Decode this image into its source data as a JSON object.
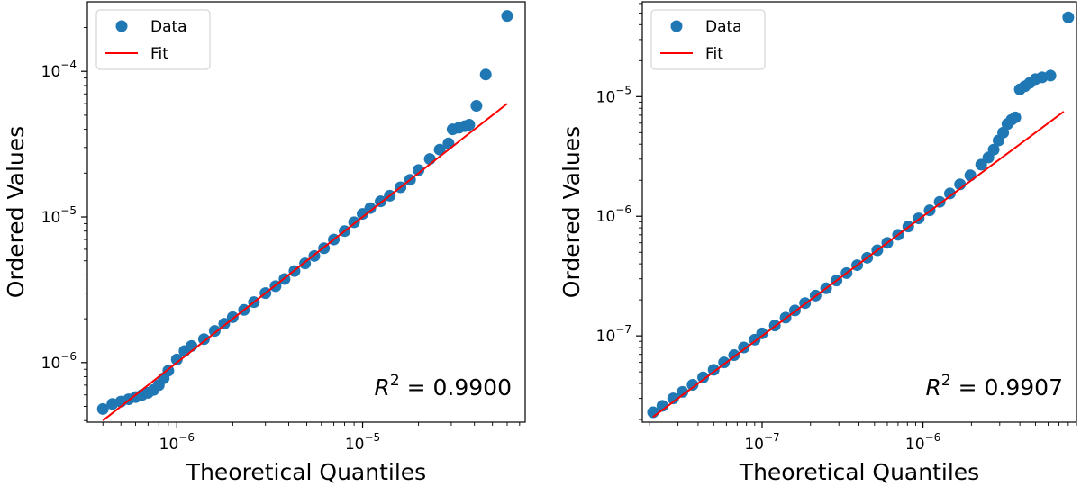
{
  "chart_data": [
    {
      "type": "scatter",
      "xscale": "log",
      "yscale": "log",
      "xlabel": "Theoretical Quantiles",
      "ylabel": "Ordered Values",
      "xlim": [
        3.3e-07,
        7.5e-05
      ],
      "ylim": [
        3.9e-07,
        0.0003
      ],
      "xticks": [
        {
          "value": 1e-06,
          "mant": "10",
          "exp": "−6"
        },
        {
          "value": 1e-05,
          "mant": "10",
          "exp": "−5"
        }
      ],
      "yticks": [
        {
          "value": 1e-06,
          "mant": "10",
          "exp": "−6"
        },
        {
          "value": 1e-05,
          "mant": "10",
          "exp": "−5"
        },
        {
          "value": 0.0001,
          "mant": "10",
          "exp": "−4"
        }
      ],
      "legend": {
        "position": "upper-left",
        "entries": [
          {
            "label": "Data",
            "marker": "circle",
            "color": "#1f77b4"
          },
          {
            "label": "Fit",
            "marker": "line",
            "color": "#ff0000"
          }
        ]
      },
      "annotation": {
        "prefix": "R",
        "sup": "2",
        "value": "= 0.9900",
        "position": "lower-right"
      },
      "fit": {
        "x": [
          4e-07,
          6e-05
        ],
        "y": [
          4e-07,
          6e-05
        ],
        "color": "#ff0000"
      },
      "series": [
        {
          "name": "Data",
          "color": "#1f77b4",
          "points": [
            [
              4e-07,
              4.8e-07
            ],
            [
              4.5e-07,
              5.2e-07
            ],
            [
              5e-07,
              5.4e-07
            ],
            [
              5.5e-07,
              5.6e-07
            ],
            [
              6e-07,
              5.8e-07
            ],
            [
              6.5e-07,
              6e-07
            ],
            [
              7e-07,
              6.2e-07
            ],
            [
              7.5e-07,
              6.5e-07
            ],
            [
              8e-07,
              7e-07
            ],
            [
              8.5e-07,
              7.8e-07
            ],
            [
              9e-07,
              8.8e-07
            ],
            [
              1e-06,
              1.05e-06
            ],
            [
              1.1e-06,
              1.2e-06
            ],
            [
              1.2e-06,
              1.3e-06
            ],
            [
              1.4e-06,
              1.45e-06
            ],
            [
              1.6e-06,
              1.65e-06
            ],
            [
              1.8e-06,
              1.85e-06
            ],
            [
              2e-06,
              2.05e-06
            ],
            [
              2.3e-06,
              2.3e-06
            ],
            [
              2.6e-06,
              2.6e-06
            ],
            [
              3e-06,
              3e-06
            ],
            [
              3.4e-06,
              3.35e-06
            ],
            [
              3.8e-06,
              3.75e-06
            ],
            [
              4.3e-06,
              4.25e-06
            ],
            [
              4.9e-06,
              4.8e-06
            ],
            [
              5.5e-06,
              5.4e-06
            ],
            [
              6.2e-06,
              6.1e-06
            ],
            [
              7e-06,
              7e-06
            ],
            [
              8e-06,
              8e-06
            ],
            [
              9e-06,
              9.2e-06
            ],
            [
              1e-05,
              1.05e-05
            ],
            [
              1.1e-05,
              1.15e-05
            ],
            [
              1.25e-05,
              1.28e-05
            ],
            [
              1.4e-05,
              1.4e-05
            ],
            [
              1.6e-05,
              1.6e-05
            ],
            [
              1.8e-05,
              1.8e-05
            ],
            [
              2e-05,
              2.1e-05
            ],
            [
              2.3e-05,
              2.5e-05
            ],
            [
              2.6e-05,
              2.9e-05
            ],
            [
              2.9e-05,
              3.2e-05
            ],
            [
              3.05e-05,
              4e-05
            ],
            [
              3.3e-05,
              4.1e-05
            ],
            [
              3.55e-05,
              4.2e-05
            ],
            [
              3.75e-05,
              4.3e-05
            ],
            [
              4.1e-05,
              5.8e-05
            ],
            [
              4.6e-05,
              9.5e-05
            ],
            [
              6e-05,
              0.00024
            ]
          ]
        }
      ]
    },
    {
      "type": "scatter",
      "xscale": "log",
      "yscale": "log",
      "xlabel": "Theoretical Quantiles",
      "ylabel": "Ordered Values",
      "xlim": [
        1.8e-08,
        9e-06
      ],
      "ylim": [
        1.9e-08,
        6.2e-05
      ],
      "xticks": [
        {
          "value": 1e-07,
          "mant": "10",
          "exp": "−7"
        },
        {
          "value": 1e-06,
          "mant": "10",
          "exp": "−6"
        }
      ],
      "yticks": [
        {
          "value": 1e-07,
          "mant": "10",
          "exp": "−7"
        },
        {
          "value": 1e-06,
          "mant": "10",
          "exp": "−6"
        },
        {
          "value": 1e-05,
          "mant": "10",
          "exp": "−5"
        }
      ],
      "legend": {
        "position": "upper-left",
        "entries": [
          {
            "label": "Data",
            "marker": "circle",
            "color": "#1f77b4"
          },
          {
            "label": "Fit",
            "marker": "line",
            "color": "#ff0000"
          }
        ]
      },
      "annotation": {
        "prefix": "R",
        "sup": "2",
        "value": "= 0.9907",
        "position": "lower-right"
      },
      "fit": {
        "x": [
          2.1e-08,
          7.5e-06
        ],
        "y": [
          2.1e-08,
          7.5e-06
        ],
        "color": "#ff0000"
      },
      "series": [
        {
          "name": "Data",
          "color": "#1f77b4",
          "points": [
            [
              2.1e-08,
              2.3e-08
            ],
            [
              2.4e-08,
              2.6e-08
            ],
            [
              2.8e-08,
              3e-08
            ],
            [
              3.2e-08,
              3.4e-08
            ],
            [
              3.7e-08,
              3.9e-08
            ],
            [
              4.3e-08,
              4.5e-08
            ],
            [
              5e-08,
              5.2e-08
            ],
            [
              5.8e-08,
              6e-08
            ],
            [
              6.7e-08,
              6.9e-08
            ],
            [
              7.7e-08,
              8e-08
            ],
            [
              9e-08,
              9.3e-08
            ],
            [
              1e-07,
              1.05e-07
            ],
            [
              1.2e-07,
              1.22e-07
            ],
            [
              1.4e-07,
              1.42e-07
            ],
            [
              1.6e-07,
              1.63e-07
            ],
            [
              1.85e-07,
              1.88e-07
            ],
            [
              2.15e-07,
              2.17e-07
            ],
            [
              2.5e-07,
              2.5e-07
            ],
            [
              2.9e-07,
              2.9e-07
            ],
            [
              3.35e-07,
              3.35e-07
            ],
            [
              3.9e-07,
              3.9e-07
            ],
            [
              4.5e-07,
              4.5e-07
            ],
            [
              5.2e-07,
              5.2e-07
            ],
            [
              6e-07,
              6e-07
            ],
            [
              7e-07,
              7e-07
            ],
            [
              8.1e-07,
              8.2e-07
            ],
            [
              9.4e-07,
              9.6e-07
            ],
            [
              1.1e-06,
              1.12e-06
            ],
            [
              1.27e-06,
              1.32e-06
            ],
            [
              1.47e-06,
              1.55e-06
            ],
            [
              1.7e-06,
              1.85e-06
            ],
            [
              1.97e-06,
              2.2e-06
            ],
            [
              2.3e-06,
              2.7e-06
            ],
            [
              2.55e-06,
              3.1e-06
            ],
            [
              2.75e-06,
              3.6e-06
            ],
            [
              2.95e-06,
              4.3e-06
            ],
            [
              3.15e-06,
              5e-06
            ],
            [
              3.35e-06,
              5.9e-06
            ],
            [
              3.55e-06,
              6.4e-06
            ],
            [
              3.75e-06,
              6.7e-06
            ],
            [
              4e-06,
              1.15e-05
            ],
            [
              4.3e-06,
              1.22e-05
            ],
            [
              4.6e-06,
              1.3e-05
            ],
            [
              5e-06,
              1.4e-05
            ],
            [
              5.5e-06,
              1.45e-05
            ],
            [
              6.2e-06,
              1.5e-05
            ],
            [
              8e-06,
              4.6e-05
            ]
          ]
        }
      ]
    }
  ]
}
